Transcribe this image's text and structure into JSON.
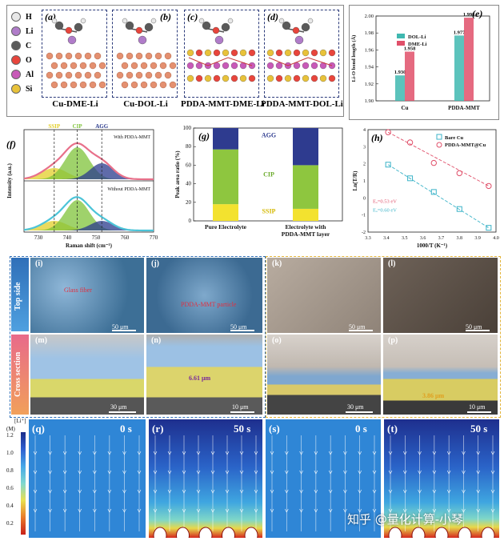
{
  "panel_a_d": {
    "legend": [
      {
        "symbol": "H",
        "color": "#e8e8e8"
      },
      {
        "symbol": "Li",
        "color": "#b07cc9"
      },
      {
        "symbol": "C",
        "color": "#5a5a5a"
      },
      {
        "symbol": "O",
        "color": "#e8453c"
      },
      {
        "symbol": "Al",
        "color": "#c85ab8"
      },
      {
        "symbol": "Si",
        "color": "#e8c23a"
      }
    ],
    "letters": [
      "(a)",
      "(b)",
      "(c)",
      "(d)"
    ],
    "captions": [
      "Cu-DME-Li",
      "Cu-DOL-Li",
      "PDDA-MMT-DME-Li",
      "PDDA-MMT-DOL-Li"
    ]
  },
  "panel_e": {
    "letter": "(e)",
    "chart_data": {
      "type": "bar",
      "categories": [
        "Cu",
        "PDDA-MMT"
      ],
      "series": [
        {
          "name": "DOL-Li",
          "values": [
            1.93,
            1.977
          ],
          "color": "#3fb8b0"
        },
        {
          "name": "DME-Li",
          "values": [
            1.958,
            1.998
          ],
          "color": "#e0506a"
        }
      ],
      "ylabel": "Li-O bond length (Å)",
      "ylim": [
        1.9,
        2.0
      ],
      "yticks": [
        "1.90",
        "1.92",
        "1.94",
        "1.96",
        "1.98",
        "2.00"
      ],
      "value_labels": [
        "1.930",
        "1.958",
        "1.977",
        "1.998"
      ]
    }
  },
  "panel_f": {
    "letter": "(f)",
    "chart_data": {
      "type": "line",
      "peak_labels": [
        "SSIP",
        "CIP",
        "AGG"
      ],
      "peak_colors": [
        "#e3cf2a",
        "#7fc33a",
        "#2a3a8c"
      ],
      "top_label": "With PDDA-MMT",
      "bottom_label": "Without PDDA-MMT",
      "xlabel": "Raman shift (cm⁻¹)",
      "ylabel": "Intensity (a.u.)",
      "xticks": [
        "730",
        "740",
        "750",
        "760",
        "770"
      ],
      "xlim": [
        725,
        770
      ]
    }
  },
  "panel_g": {
    "letter": "(g)",
    "chart_data": {
      "type": "bar",
      "categories": [
        "Pure Electrolyte",
        "Electrolyte with PDDA-MMT layer"
      ],
      "series": [
        {
          "name": "SSIP",
          "values": [
            18,
            13
          ],
          "color": "#f3e22f"
        },
        {
          "name": "CIP",
          "values": [
            59,
            47
          ],
          "color": "#8ec63f"
        },
        {
          "name": "AGG",
          "values": [
            23,
            40
          ],
          "color": "#2e3b8f"
        }
      ],
      "ylabel": "Peak area ratio (%)",
      "ylim": [
        0,
        100
      ],
      "yticks": [
        "0",
        "20",
        "40",
        "60",
        "80",
        "100"
      ],
      "cat_line1": [
        "Pure Electrolyte",
        "Electrolyte with"
      ],
      "cat_line2": [
        "",
        "PDDA-MMT layer"
      ]
    }
  },
  "panel_h": {
    "letter": "(h)",
    "chart_data": {
      "type": "scatter",
      "series": [
        {
          "name": "Bare Cu",
          "marker": "square",
          "color": "#3bb3c8",
          "x": [
            3.41,
            3.53,
            3.66,
            3.8,
            3.96
          ],
          "y": [
            1.95,
            1.15,
            0.35,
            -0.65,
            -1.75
          ]
        },
        {
          "name": "PDDA-MMT@Cu",
          "marker": "circle",
          "color": "#e0506a",
          "x": [
            3.41,
            3.53,
            3.66,
            3.8,
            3.96
          ],
          "y": [
            3.85,
            3.25,
            2.05,
            1.45,
            0.7
          ]
        }
      ],
      "ea_labels": [
        "Eₐ=0.53 eV",
        "Eₐ=0.60 eV"
      ],
      "xlabel": "1000/T (K⁻¹)",
      "ylabel": "Ln(T/R)",
      "xlim": [
        3.3,
        4.0
      ],
      "ylim": [
        -2,
        4
      ],
      "xticks": [
        "3.3",
        "3.4",
        "3.5",
        "3.6",
        "3.7",
        "3.8",
        "3.9",
        "4.0"
      ],
      "yticks": [
        "4",
        "3",
        "2",
        "1",
        "0",
        "-1",
        "-2"
      ]
    }
  },
  "sem": {
    "row_labels": [
      "Top side",
      "Cross section"
    ],
    "letters": [
      "(i)",
      "(j)",
      "(k)",
      "(l)",
      "(m)",
      "(n)",
      "(o)",
      "(p)"
    ],
    "scale_bars": [
      "50 μm",
      "50 μm",
      "50 μm",
      "50 μm",
      "30 μm",
      "10 μm",
      "30 μm",
      "10 μm"
    ],
    "annotations": [
      "Glass fiber",
      "PDDA-MMT particle"
    ],
    "thickness": [
      "6.61 μm",
      "3.86 μm"
    ]
  },
  "sim": {
    "colorbar_title": "[Li⁺]",
    "colorbar_unit": "(M)",
    "colorbar_ticks": [
      "1.2",
      "1.0",
      "0.8",
      "0.6",
      "0.4",
      "0.2"
    ],
    "letters": [
      "(q)",
      "(r)",
      "(s)",
      "(t)"
    ],
    "times": [
      "0 s",
      "50 s",
      "0 s",
      "50 s"
    ]
  },
  "watermark": "知乎 @量化计算-小琴"
}
